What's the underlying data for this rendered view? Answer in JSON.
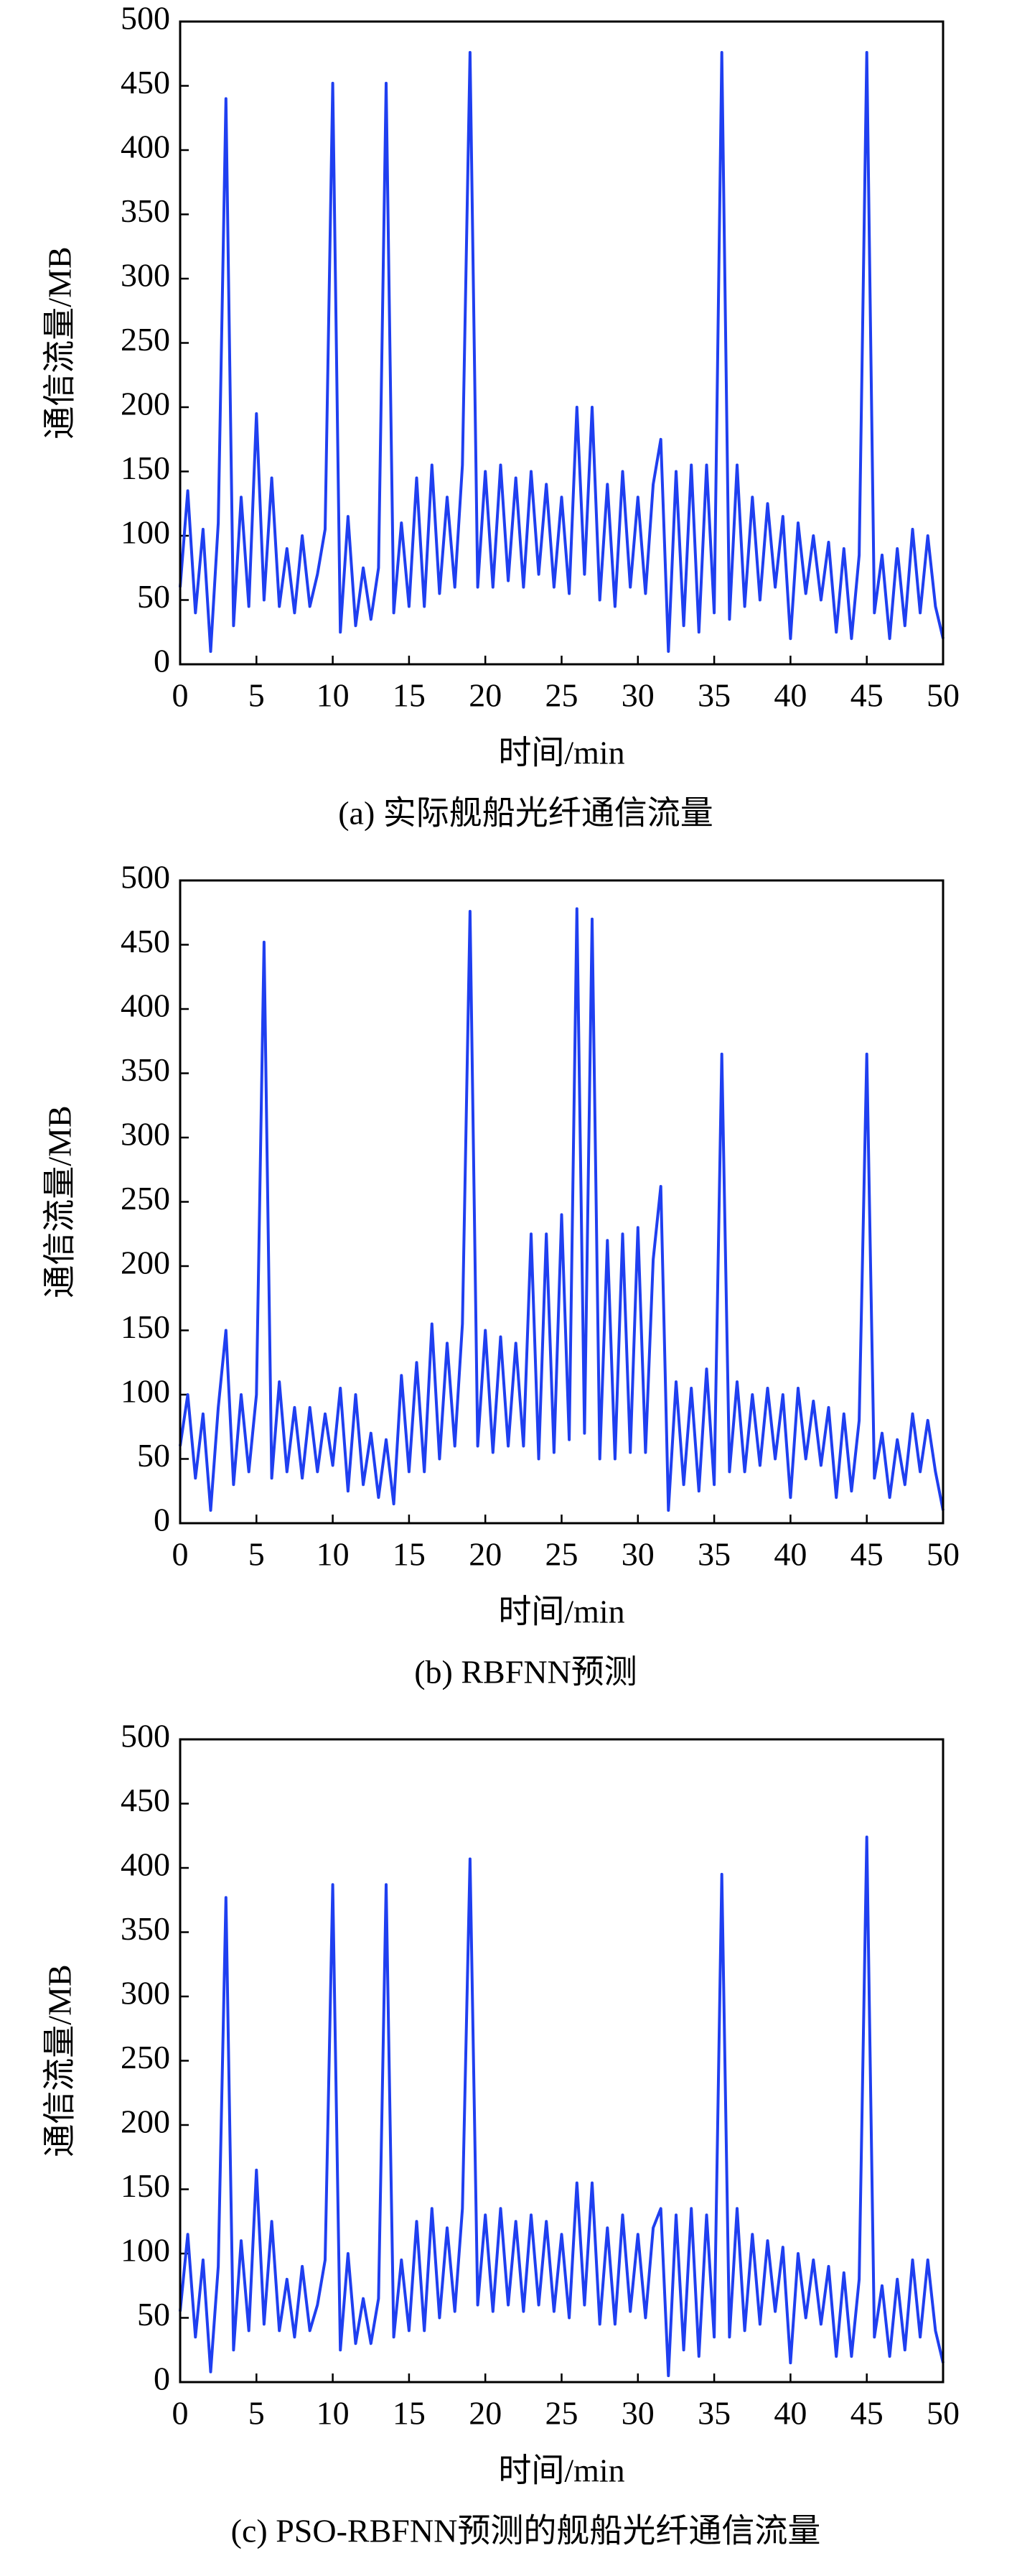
{
  "chart_data": [
    {
      "type": "line",
      "caption": "(a) 实际舰船光纤通信流量",
      "xlabel": "时间/min",
      "ylabel": "通信流量/MB",
      "xlim": [
        0,
        50
      ],
      "ylim": [
        0,
        500
      ],
      "xticks": [
        0,
        5,
        10,
        15,
        20,
        25,
        30,
        35,
        40,
        45,
        50
      ],
      "yticks": [
        0,
        50,
        100,
        150,
        200,
        250,
        300,
        350,
        400,
        450,
        500
      ],
      "x": [
        0,
        0.5,
        1,
        1.5,
        2,
        2.5,
        3,
        3.5,
        4,
        4.5,
        5,
        5.5,
        6,
        6.5,
        7,
        7.5,
        8,
        8.5,
        9,
        9.5,
        10,
        10.5,
        11,
        11.5,
        12,
        12.5,
        13,
        13.5,
        14,
        14.5,
        15,
        15.5,
        16,
        16.5,
        17,
        17.5,
        18,
        18.5,
        19,
        19.5,
        20,
        20.5,
        21,
        21.5,
        22,
        22.5,
        23,
        23.5,
        24,
        24.5,
        25,
        25.5,
        26,
        26.5,
        27,
        27.5,
        28,
        28.5,
        29,
        29.5,
        30,
        30.5,
        31,
        31.5,
        32,
        32.5,
        33,
        33.5,
        34,
        34.5,
        35,
        35.5,
        36,
        36.5,
        37,
        37.5,
        38,
        38.5,
        39,
        39.5,
        40,
        40.5,
        41,
        41.5,
        42,
        42.5,
        43,
        43.5,
        44,
        44.5,
        45,
        45.5,
        46,
        46.5,
        47,
        47.5,
        48,
        48.5,
        49,
        49.5,
        50
      ],
      "series": [
        {
          "color": "#1f3ff0",
          "values": [
            60,
            135,
            40,
            105,
            10,
            110,
            440,
            30,
            130,
            45,
            195,
            50,
            145,
            45,
            90,
            40,
            100,
            45,
            70,
            105,
            452,
            25,
            115,
            30,
            75,
            35,
            75,
            452,
            40,
            110,
            45,
            145,
            45,
            155,
            55,
            130,
            60,
            155,
            476,
            60,
            150,
            60,
            155,
            65,
            145,
            60,
            150,
            70,
            140,
            60,
            130,
            55,
            200,
            70,
            200,
            50,
            140,
            45,
            150,
            60,
            130,
            55,
            140,
            175,
            10,
            150,
            30,
            155,
            25,
            155,
            40,
            476,
            35,
            155,
            45,
            130,
            50,
            125,
            60,
            115,
            20,
            110,
            55,
            100,
            50,
            95,
            25,
            90,
            20,
            85,
            476,
            40,
            85,
            20,
            90,
            30,
            105,
            40,
            100,
            45,
            20
          ]
        }
      ]
    },
    {
      "type": "line",
      "caption": "(b) RBFNN预测",
      "xlabel": "时间/min",
      "ylabel": "通信流量/MB",
      "xlim": [
        0,
        50
      ],
      "ylim": [
        0,
        500
      ],
      "xticks": [
        0,
        5,
        10,
        15,
        20,
        25,
        30,
        35,
        40,
        45,
        50
      ],
      "yticks": [
        0,
        50,
        100,
        150,
        200,
        250,
        300,
        350,
        400,
        450,
        500
      ],
      "x": [
        0,
        0.5,
        1,
        1.5,
        2,
        2.5,
        3,
        3.5,
        4,
        4.5,
        5,
        5.5,
        6,
        6.5,
        7,
        7.5,
        8,
        8.5,
        9,
        9.5,
        10,
        10.5,
        11,
        11.5,
        12,
        12.5,
        13,
        13.5,
        14,
        14.5,
        15,
        15.5,
        16,
        16.5,
        17,
        17.5,
        18,
        18.5,
        19,
        19.5,
        20,
        20.5,
        21,
        21.5,
        22,
        22.5,
        23,
        23.5,
        24,
        24.5,
        25,
        25.5,
        26,
        26.5,
        27,
        27.5,
        28,
        28.5,
        29,
        29.5,
        30,
        30.5,
        31,
        31.5,
        32,
        32.5,
        33,
        33.5,
        34,
        34.5,
        35,
        35.5,
        36,
        36.5,
        37,
        37.5,
        38,
        38.5,
        39,
        39.5,
        40,
        40.5,
        41,
        41.5,
        42,
        42.5,
        43,
        43.5,
        44,
        44.5,
        45,
        45.5,
        46,
        46.5,
        47,
        47.5,
        48,
        48.5,
        49,
        49.5,
        50
      ],
      "series": [
        {
          "color": "#1f3ff0",
          "values": [
            60,
            100,
            35,
            85,
            10,
            90,
            150,
            30,
            100,
            40,
            100,
            452,
            35,
            110,
            40,
            90,
            35,
            90,
            40,
            85,
            45,
            105,
            25,
            100,
            30,
            70,
            20,
            65,
            15,
            115,
            40,
            125,
            40,
            155,
            50,
            140,
            60,
            155,
            476,
            60,
            150,
            55,
            145,
            60,
            140,
            60,
            225,
            50,
            225,
            55,
            240,
            65,
            478,
            70,
            470,
            50,
            220,
            50,
            225,
            55,
            230,
            55,
            205,
            262,
            10,
            110,
            30,
            105,
            25,
            120,
            30,
            365,
            40,
            110,
            40,
            100,
            45,
            105,
            50,
            100,
            20,
            105,
            50,
            95,
            45,
            90,
            20,
            85,
            25,
            80,
            365,
            35,
            70,
            20,
            65,
            30,
            85,
            40,
            80,
            40,
            10
          ]
        }
      ]
    },
    {
      "type": "line",
      "caption": "(c) PSO-RBFNN预测的舰船光纤通信流量",
      "xlabel": "时间/min",
      "ylabel": "通信流量/MB",
      "xlim": [
        0,
        50
      ],
      "ylim": [
        0,
        500
      ],
      "xticks": [
        0,
        5,
        10,
        15,
        20,
        25,
        30,
        35,
        40,
        45,
        50
      ],
      "yticks": [
        0,
        50,
        100,
        150,
        200,
        250,
        300,
        350,
        400,
        450,
        500
      ],
      "x": [
        0,
        0.5,
        1,
        1.5,
        2,
        2.5,
        3,
        3.5,
        4,
        4.5,
        5,
        5.5,
        6,
        6.5,
        7,
        7.5,
        8,
        8.5,
        9,
        9.5,
        10,
        10.5,
        11,
        11.5,
        12,
        12.5,
        13,
        13.5,
        14,
        14.5,
        15,
        15.5,
        16,
        16.5,
        17,
        17.5,
        18,
        18.5,
        19,
        19.5,
        20,
        20.5,
        21,
        21.5,
        22,
        22.5,
        23,
        23.5,
        24,
        24.5,
        25,
        25.5,
        26,
        26.5,
        27,
        27.5,
        28,
        28.5,
        29,
        29.5,
        30,
        30.5,
        31,
        31.5,
        32,
        32.5,
        33,
        33.5,
        34,
        34.5,
        35,
        35.5,
        36,
        36.5,
        37,
        37.5,
        38,
        38.5,
        39,
        39.5,
        40,
        40.5,
        41,
        41.5,
        42,
        42.5,
        43,
        43.5,
        44,
        44.5,
        45,
        45.5,
        46,
        46.5,
        47,
        47.5,
        48,
        48.5,
        49,
        49.5,
        50
      ],
      "series": [
        {
          "color": "#1f3ff0",
          "values": [
            55,
            115,
            35,
            95,
            8,
            90,
            377,
            25,
            110,
            40,
            165,
            45,
            125,
            40,
            80,
            35,
            90,
            40,
            60,
            95,
            387,
            25,
            100,
            30,
            65,
            30,
            65,
            387,
            35,
            95,
            40,
            125,
            40,
            135,
            50,
            120,
            55,
            135,
            407,
            60,
            130,
            55,
            135,
            60,
            125,
            55,
            130,
            60,
            125,
            55,
            115,
            50,
            155,
            60,
            155,
            45,
            120,
            45,
            130,
            55,
            115,
            50,
            120,
            135,
            5,
            130,
            25,
            135,
            20,
            130,
            35,
            395,
            35,
            135,
            40,
            115,
            45,
            110,
            55,
            105,
            15,
            100,
            50,
            95,
            45,
            90,
            20,
            85,
            20,
            80,
            424,
            35,
            75,
            20,
            80,
            25,
            95,
            35,
            95,
            40,
            15
          ]
        }
      ]
    }
  ]
}
